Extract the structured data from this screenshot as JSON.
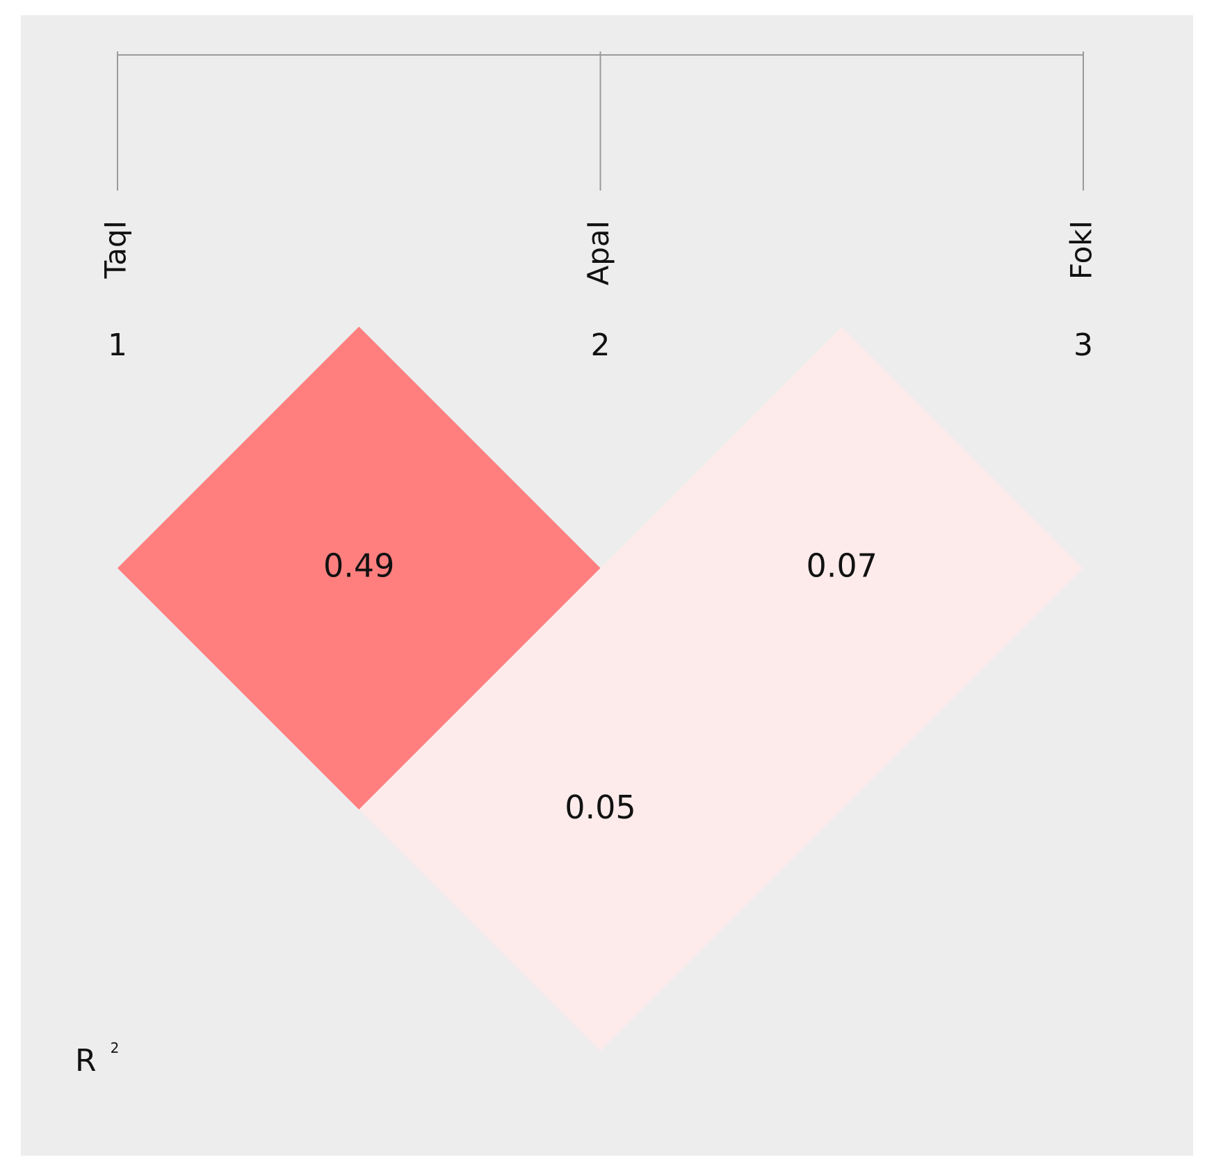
{
  "chart_data": {
    "type": "heatmap",
    "subtype": "LD triangle plot",
    "markers": [
      {
        "index": "1",
        "name": "TaqI"
      },
      {
        "index": "2",
        "name": "ApaI"
      },
      {
        "index": "3",
        "name": "FokI"
      }
    ],
    "pairs": [
      {
        "a": 1,
        "b": 2,
        "value": 0.49,
        "label": "0.49",
        "color": "#ff7f7f"
      },
      {
        "a": 2,
        "b": 3,
        "value": 0.07,
        "label": "0.07",
        "color": "#fdebeb"
      },
      {
        "a": 1,
        "b": 3,
        "value": 0.05,
        "label": "0.05",
        "color": "#fdebeb"
      }
    ],
    "statistic": {
      "label": "R",
      "superscript": "2"
    },
    "colors": {
      "background": "#ededed",
      "lines": "#9a9a9a"
    }
  }
}
